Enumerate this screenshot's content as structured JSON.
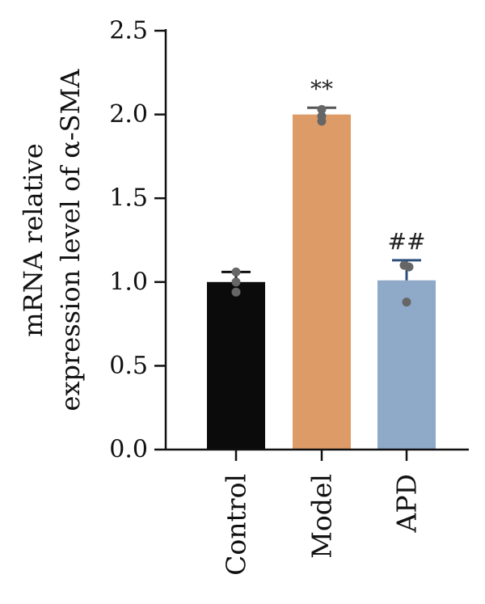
{
  "chart_data": {
    "type": "bar",
    "categories": [
      "Control",
      "Model",
      "APD"
    ],
    "values": [
      1.0,
      2.0,
      1.01
    ],
    "error_upper": [
      1.06,
      2.04,
      1.13
    ],
    "points": [
      [
        1.06,
        1.0,
        0.94
      ],
      [
        2.03,
        1.99,
        1.96
      ],
      [
        1.1,
        1.09,
        0.88
      ]
    ],
    "annotations": [
      "",
      "**",
      "##"
    ],
    "colors": [
      "#0b0b0b",
      "#dd9b68",
      "#8fa9c8"
    ],
    "error_colors": [
      "#111111",
      "#555555",
      "#2e4f7c"
    ],
    "point_color": "#666666",
    "ylabel_lines": [
      "mRNA relative",
      "expression level of α-SMA"
    ],
    "xlabel": "",
    "ylim": [
      0,
      2.5
    ],
    "yticks": [
      0.0,
      0.5,
      1.0,
      1.5,
      2.0,
      2.5
    ],
    "ytick_labels": [
      "0.0",
      "0.5",
      "1.0",
      "1.5",
      "2.0",
      "2.5"
    ],
    "grid": false
  }
}
